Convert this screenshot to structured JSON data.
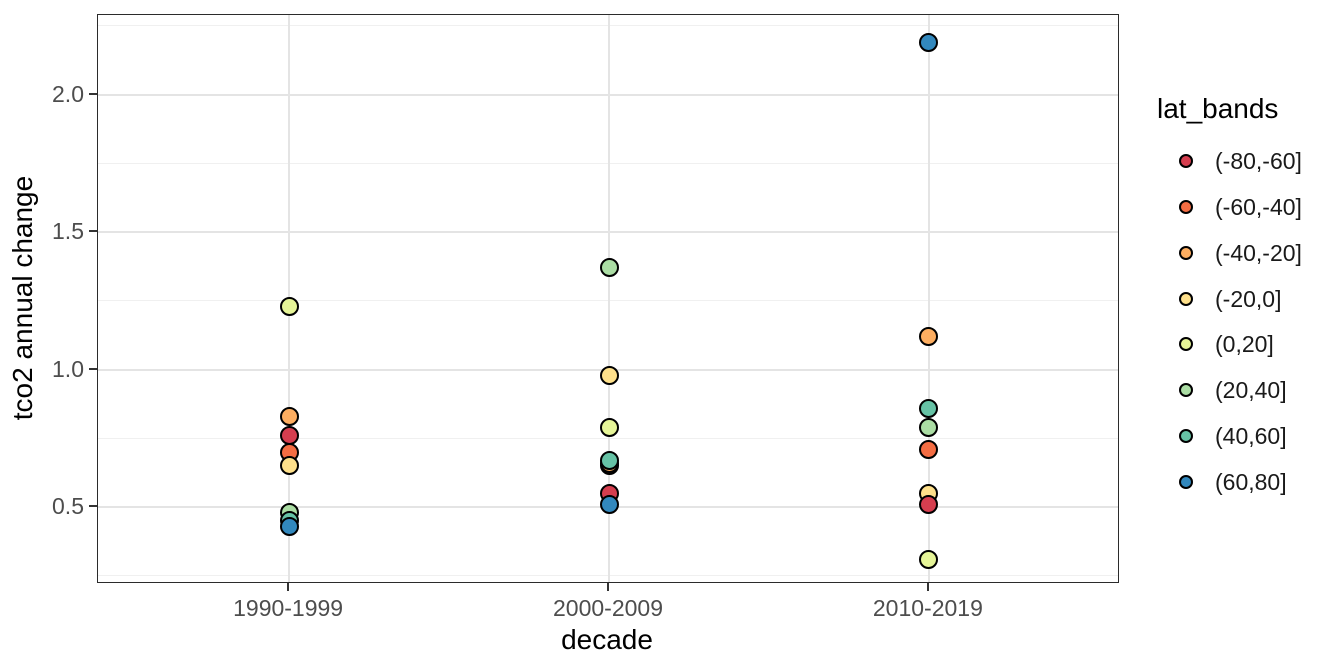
{
  "chart_data": {
    "type": "scatter",
    "title": "",
    "xlabel": "decade",
    "ylabel": "tco2 annual change",
    "categories": [
      "1990-1999",
      "2000-2009",
      "2010-2019"
    ],
    "ylim": [
      0.22,
      2.29
    ],
    "y_major_ticks": [
      {
        "value": 0.5,
        "label": "0.5"
      },
      {
        "value": 1.0,
        "label": "1.0"
      },
      {
        "value": 1.5,
        "label": "1.5"
      },
      {
        "value": 2.0,
        "label": "2.0"
      }
    ],
    "y_minor_ticks": [
      0.25,
      0.75,
      1.25,
      1.75,
      2.25
    ],
    "grid": true,
    "legend": {
      "title": "lat_bands",
      "position": "right"
    },
    "series": [
      {
        "name": "(-80,-60]",
        "color": "#d53e4f",
        "values": [
          0.76,
          0.55,
          0.51
        ]
      },
      {
        "name": "(-60,-40]",
        "color": "#f46d43",
        "values": [
          0.7,
          0.65,
          0.71
        ]
      },
      {
        "name": "(-40,-20]",
        "color": "#fdae61",
        "values": [
          0.83,
          0.66,
          1.12
        ]
      },
      {
        "name": "(-20,0]",
        "color": "#fee08b",
        "values": [
          0.65,
          0.98,
          0.55
        ]
      },
      {
        "name": "(0,20]",
        "color": "#e6f598",
        "values": [
          1.23,
          0.79,
          0.31
        ]
      },
      {
        "name": "(20,40]",
        "color": "#abdda4",
        "values": [
          0.48,
          1.37,
          0.79
        ]
      },
      {
        "name": "(40,60]",
        "color": "#66c2a5",
        "values": [
          0.45,
          0.67,
          0.86
        ]
      },
      {
        "name": "(60,80]",
        "color": "#3288bd",
        "values": [
          0.43,
          0.51,
          2.19
        ]
      }
    ],
    "paint_order": [
      "(-60,-40]",
      "(-40,-20]",
      "(-20,0]",
      "(-80,-60]",
      "(0,20]",
      "(20,40]",
      "(40,60]",
      "(60,80]"
    ],
    "style": {
      "point_border": "#000000",
      "grid_major": "#e4e4e4",
      "grid_minor": "#f0f0f0",
      "panel_border": "#2b2b2b",
      "tick_color": "#333333",
      "tick_label_color": "#4d4d4d",
      "background": "#ffffff"
    }
  }
}
